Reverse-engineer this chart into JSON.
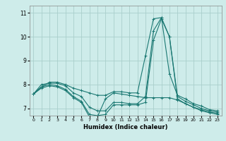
{
  "xlabel": "Humidex (Indice chaleur)",
  "xlim": [
    -0.5,
    23.5
  ],
  "ylim": [
    6.7,
    11.3
  ],
  "yticks": [
    7,
    8,
    9,
    10,
    11
  ],
  "xticks": [
    0,
    1,
    2,
    3,
    4,
    5,
    6,
    7,
    8,
    9,
    10,
    11,
    12,
    13,
    14,
    15,
    16,
    17,
    18,
    19,
    20,
    21,
    22,
    23
  ],
  "bg_color": "#ceecea",
  "grid_color": "#aacfcc",
  "line_color": "#1a7872",
  "lines": [
    [
      7.6,
      7.9,
      8.1,
      8.1,
      8.0,
      7.85,
      7.75,
      7.65,
      7.55,
      7.55,
      7.7,
      7.7,
      7.65,
      7.65,
      9.2,
      10.75,
      10.8,
      8.45,
      7.55,
      7.4,
      7.2,
      7.1,
      6.95,
      6.9
    ],
    [
      7.6,
      8.0,
      8.05,
      8.05,
      7.95,
      7.65,
      7.5,
      7.05,
      6.9,
      6.9,
      7.25,
      7.25,
      7.2,
      7.2,
      7.5,
      10.25,
      10.8,
      10.0,
      7.5,
      7.3,
      7.15,
      7.0,
      6.9,
      6.85
    ],
    [
      7.6,
      7.9,
      8.0,
      7.95,
      7.8,
      7.5,
      7.3,
      6.75,
      6.7,
      6.75,
      7.15,
      7.15,
      7.15,
      7.15,
      7.25,
      9.85,
      10.75,
      10.0,
      7.4,
      7.2,
      7.05,
      6.95,
      6.85,
      6.8
    ],
    [
      7.6,
      7.85,
      7.95,
      7.9,
      7.75,
      7.45,
      7.25,
      6.65,
      6.65,
      7.4,
      7.65,
      7.6,
      7.55,
      7.5,
      7.45,
      7.45,
      7.45,
      7.45,
      7.35,
      7.2,
      7.05,
      6.9,
      6.82,
      6.75
    ]
  ]
}
